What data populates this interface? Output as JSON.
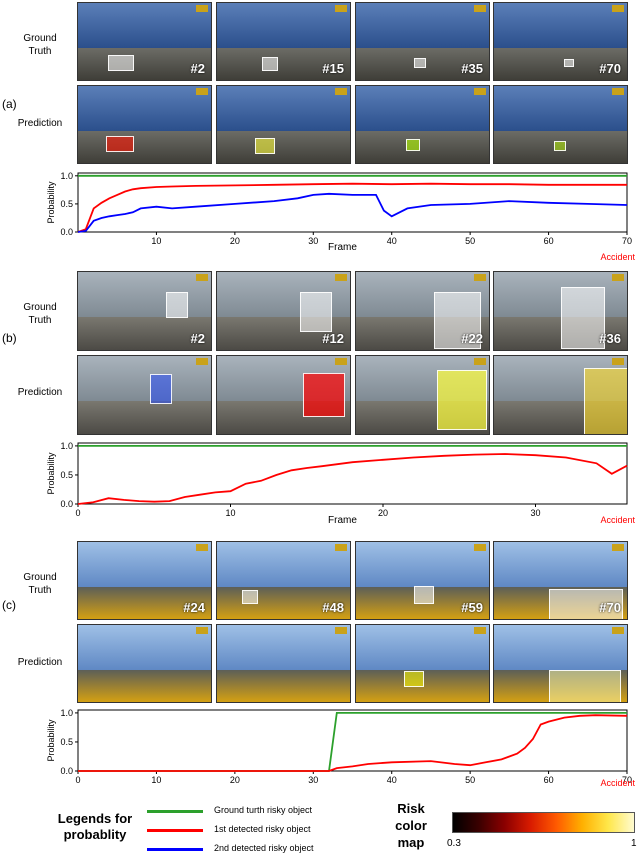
{
  "panels": [
    {
      "tag": "(a)",
      "rows": [
        "Ground\nTruth",
        "Prediction"
      ],
      "frames": [
        "#2",
        "#15",
        "#35",
        "#70"
      ],
      "chart_data": {
        "type": "line",
        "xlabel": "Frame",
        "ylabel": "Probability",
        "accident_label": "Accident",
        "xlim": [
          0,
          70
        ],
        "ylim": [
          0,
          1.05
        ],
        "xticks": [
          10,
          20,
          30,
          40,
          50,
          60,
          70
        ],
        "xtick_labels": [
          "10",
          "20",
          "30",
          "40",
          "50",
          "60",
          "70"
        ],
        "yticks": [
          0,
          0.5,
          1.0
        ],
        "ytick_labels": [
          "0.0",
          "0.5",
          "1.0"
        ],
        "series": [
          {
            "color": "#2ca02c",
            "x": [
              0,
              70
            ],
            "y": [
              1.0,
              1.0
            ]
          },
          {
            "color": "#ff0000",
            "x": [
              0,
              1,
              2,
              3,
              4,
              5,
              6,
              7,
              8,
              10,
              12,
              15,
              20,
              25,
              30,
              35,
              40,
              45,
              50,
              55,
              60,
              65,
              70
            ],
            "y": [
              0,
              0.05,
              0.42,
              0.52,
              0.6,
              0.66,
              0.72,
              0.76,
              0.78,
              0.8,
              0.81,
              0.82,
              0.83,
              0.84,
              0.85,
              0.86,
              0.85,
              0.86,
              0.85,
              0.85,
              0.84,
              0.84,
              0.84
            ]
          },
          {
            "color": "#0000ff",
            "x": [
              0,
              1,
              2,
              3,
              4,
              5,
              6,
              7,
              8,
              10,
              12,
              15,
              20,
              25,
              28,
              30,
              32,
              35,
              38,
              39,
              40,
              42,
              45,
              50,
              55,
              60,
              65,
              70
            ],
            "y": [
              0,
              0.02,
              0.2,
              0.25,
              0.28,
              0.3,
              0.32,
              0.35,
              0.42,
              0.45,
              0.42,
              0.45,
              0.5,
              0.55,
              0.6,
              0.66,
              0.68,
              0.66,
              0.66,
              0.38,
              0.28,
              0.42,
              0.48,
              0.5,
              0.55,
              0.52,
              0.5,
              0.48
            ]
          }
        ]
      }
    },
    {
      "tag": "(b)",
      "rows": [
        "Ground\nTruth",
        "Prediction"
      ],
      "frames": [
        "#2",
        "#12",
        "#22",
        "#36"
      ],
      "chart_data": {
        "type": "line",
        "xlabel": "Frame",
        "ylabel": "Probability",
        "accident_label": "Accident",
        "xlim": [
          0,
          36
        ],
        "ylim": [
          0,
          1.05
        ],
        "xticks": [
          0,
          10,
          20,
          30
        ],
        "xtick_labels": [
          "0",
          "10",
          "20",
          "30"
        ],
        "yticks": [
          0,
          0.5,
          1.0
        ],
        "ytick_labels": [
          "0.0",
          "0.5",
          "1.0"
        ],
        "series": [
          {
            "color": "#2ca02c",
            "x": [
              0,
              36
            ],
            "y": [
              1.0,
              1.0
            ]
          },
          {
            "color": "#ff0000",
            "x": [
              0,
              1,
              2,
              3,
              4,
              5,
              6,
              7,
              8,
              9,
              10,
              11,
              12,
              13,
              14,
              15,
              16,
              18,
              20,
              22,
              24,
              26,
              28,
              30,
              32,
              34,
              35,
              36
            ],
            "y": [
              0,
              0.03,
              0.1,
              0.07,
              0.05,
              0.04,
              0.05,
              0.12,
              0.16,
              0.2,
              0.22,
              0.35,
              0.4,
              0.5,
              0.58,
              0.62,
              0.65,
              0.72,
              0.76,
              0.8,
              0.83,
              0.85,
              0.86,
              0.84,
              0.8,
              0.7,
              0.52,
              0.66
            ]
          }
        ]
      }
    },
    {
      "tag": "(c)",
      "rows": [
        "Ground\nTruth",
        "Prediction"
      ],
      "frames": [
        "#24",
        "#48",
        "#59",
        "#70"
      ],
      "chart_data": {
        "type": "line",
        "xlabel": "",
        "ylabel": "Probability",
        "accident_label": "Accident",
        "xlim": [
          0,
          70
        ],
        "ylim": [
          0,
          1.05
        ],
        "xticks": [
          0,
          10,
          20,
          30,
          40,
          50,
          60,
          70
        ],
        "xtick_labels": [
          "0",
          "10",
          "20",
          "30",
          "40",
          "50",
          "60",
          "70"
        ],
        "yticks": [
          0,
          0.5,
          1.0
        ],
        "ytick_labels": [
          "0.0",
          "0.5",
          "1.0"
        ],
        "series": [
          {
            "color": "#2ca02c",
            "x": [
              0,
              31,
              32,
              33,
              70
            ],
            "y": [
              0,
              0,
              0,
              1.0,
              1.0
            ]
          },
          {
            "color": "#ff0000",
            "x": [
              0,
              32,
              33,
              35,
              37,
              40,
              45,
              48,
              50,
              52,
              54,
              56,
              57,
              58,
              59,
              60,
              62,
              64,
              66,
              70
            ],
            "y": [
              0,
              0,
              0.05,
              0.08,
              0.12,
              0.15,
              0.17,
              0.12,
              0.1,
              0.15,
              0.2,
              0.3,
              0.4,
              0.55,
              0.8,
              0.85,
              0.92,
              0.95,
              0.96,
              0.95
            ]
          }
        ]
      }
    }
  ],
  "legend": {
    "title": "Legends for\nprobablity",
    "items": [
      {
        "label": "Ground turth risky object",
        "color": "#2ca02c"
      },
      {
        "label": "1st detected risky object",
        "color": "#ff0000"
      },
      {
        "label": "2nd detected risky object",
        "color": "#0000ff"
      }
    ]
  },
  "risk_map": {
    "title": "Risk\ncolor\nmap",
    "min_label": "0.3",
    "max_label": "1"
  }
}
